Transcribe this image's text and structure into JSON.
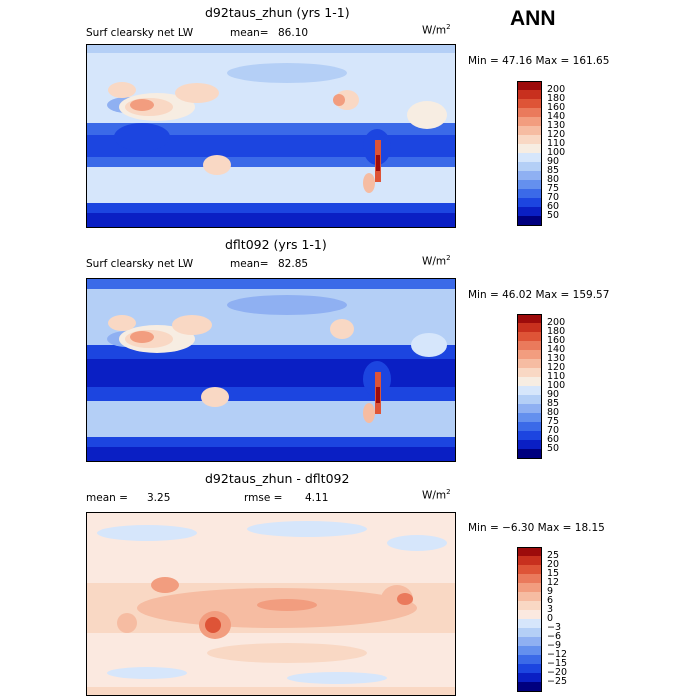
{
  "season": "ANN",
  "colors": {
    "scale": [
      "#00007f",
      "#0a1fc4",
      "#1c45e0",
      "#3b6ae8",
      "#6490ee",
      "#8fb0f2",
      "#b4cff6",
      "#d6e6fb",
      "#f7ede2",
      "#f9d8c4",
      "#f6bca2",
      "#f29d7f",
      "#ea7a5c",
      "#de5437",
      "#c8301e",
      "#9d0b0b"
    ],
    "diff": [
      "#00007f",
      "#0a1fc4",
      "#1c45e0",
      "#3b6ae8",
      "#6490ee",
      "#8fb0f2",
      "#b4cff6",
      "#d6e6fb",
      "#fbe9e0",
      "#f9d8c4",
      "#f6bca2",
      "#f29d7f",
      "#ea7a5c",
      "#de5437",
      "#c8301e",
      "#9d0b0b"
    ]
  },
  "chart_data": [
    {
      "type": "heatmap",
      "title": "d92taus_zhun (yrs 1-1)",
      "variable": "Surf clearsky net LW",
      "mean_label": "mean=",
      "mean": "86.10",
      "units": "W/m",
      "units_sup": "2",
      "minmax": "Min =  47.16 Max = 161.65",
      "min": 47.16,
      "max": 161.65,
      "levels": [
        "200",
        "180",
        "160",
        "140",
        "130",
        "120",
        "110",
        "100",
        "90",
        "85",
        "80",
        "75",
        "70",
        "60",
        "50"
      ]
    },
    {
      "type": "heatmap",
      "title": "dflt092 (yrs 1-1)",
      "variable": "Surf clearsky net LW",
      "mean_label": "mean=",
      "mean": "82.85",
      "units": "W/m",
      "units_sup": "2",
      "minmax": "Min =  46.02 Max = 159.57",
      "min": 46.02,
      "max": 159.57,
      "levels": [
        "200",
        "180",
        "160",
        "140",
        "130",
        "120",
        "110",
        "100",
        "90",
        "85",
        "80",
        "75",
        "70",
        "60",
        "50"
      ]
    },
    {
      "type": "heatmap",
      "title": "d92taus_zhun - dflt092",
      "mean_label": "mean =",
      "mean": "3.25",
      "rmse_label": "rmse =",
      "rmse": "4.11",
      "units": "W/m",
      "units_sup": "2",
      "minmax": "Min =  −6.30 Max =  18.15",
      "min": -6.3,
      "max": 18.15,
      "levels": [
        "25",
        "20",
        "15",
        "12",
        "9",
        "6",
        "3",
        "0",
        "−3",
        "−6",
        "−9",
        "−12",
        "−15",
        "−20",
        "−25"
      ]
    }
  ]
}
